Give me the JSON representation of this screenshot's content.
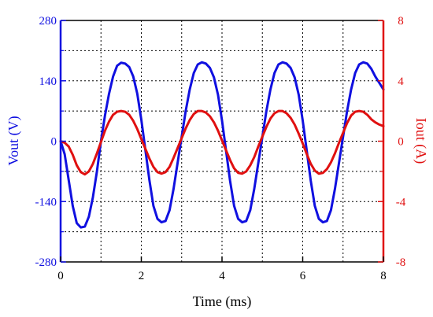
{
  "chart_data": {
    "type": "line",
    "title": "",
    "xlabel": "Time (ms)",
    "xlim": [
      0,
      8
    ],
    "xticks": [
      "0",
      "2",
      "4",
      "6",
      "8"
    ],
    "grid": true,
    "legend": "none",
    "left_axis": {
      "label": "Vout (V)",
      "color": "#1010e0",
      "ylim": [
        -280,
        280
      ],
      "ticks": [
        "280",
        "140",
        "0",
        "-140",
        "-280"
      ]
    },
    "right_axis": {
      "label": "Iout (A)",
      "color": "#e01010",
      "ylim": [
        -8,
        8
      ],
      "ticks": [
        "8",
        "4",
        "0",
        "-4",
        "-8"
      ]
    },
    "series": [
      {
        "axis": "left",
        "color": "#1010e0",
        "x": [
          0,
          0.1,
          0.2,
          0.3,
          0.4,
          0.5,
          0.6,
          0.7,
          0.8,
          0.9,
          1.0,
          1.1,
          1.2,
          1.3,
          1.4,
          1.5,
          1.6,
          1.7,
          1.8,
          1.9,
          2.0,
          2.1,
          2.2,
          2.3,
          2.4,
          2.5,
          2.6,
          2.7,
          2.8,
          2.9,
          3.0,
          3.1,
          3.2,
          3.3,
          3.4,
          3.5,
          3.6,
          3.7,
          3.8,
          3.9,
          4.0,
          4.1,
          4.2,
          4.3,
          4.4,
          4.5,
          4.6,
          4.7,
          4.8,
          4.9,
          5.0,
          5.1,
          5.2,
          5.3,
          5.4,
          5.5,
          5.6,
          5.7,
          5.8,
          5.9,
          6.0,
          6.1,
          6.2,
          6.3,
          6.4,
          6.5,
          6.6,
          6.7,
          6.8,
          6.9,
          7.0,
          7.1,
          7.2,
          7.3,
          7.4,
          7.5,
          7.6,
          7.7,
          7.8,
          7.9,
          8.0
        ],
        "y": [
          0,
          -30,
          -90,
          -150,
          -190,
          -200,
          -198,
          -175,
          -130,
          -70,
          0,
          60,
          110,
          150,
          175,
          182,
          180,
          172,
          150,
          110,
          50,
          -20,
          -90,
          -150,
          -180,
          -188,
          -185,
          -160,
          -110,
          -50,
          10,
          70,
          120,
          158,
          178,
          183,
          180,
          170,
          148,
          108,
          48,
          -22,
          -92,
          -150,
          -180,
          -188,
          -185,
          -160,
          -110,
          -50,
          10,
          70,
          120,
          158,
          178,
          183,
          180,
          170,
          148,
          108,
          48,
          -22,
          -92,
          -150,
          -180,
          -188,
          -185,
          -160,
          -110,
          -50,
          10,
          70,
          120,
          158,
          178,
          183,
          180,
          168,
          150,
          135,
          120
        ]
      },
      {
        "axis": "right",
        "color": "#e01010",
        "x": [
          0,
          0.1,
          0.2,
          0.3,
          0.4,
          0.5,
          0.6,
          0.7,
          0.8,
          0.9,
          1.0,
          1.1,
          1.2,
          1.3,
          1.4,
          1.5,
          1.6,
          1.7,
          1.8,
          1.9,
          2.0,
          2.1,
          2.2,
          2.3,
          2.4,
          2.5,
          2.6,
          2.7,
          2.8,
          2.9,
          3.0,
          3.1,
          3.2,
          3.3,
          3.4,
          3.5,
          3.6,
          3.7,
          3.8,
          3.9,
          4.0,
          4.1,
          4.2,
          4.3,
          4.4,
          4.5,
          4.6,
          4.7,
          4.8,
          4.9,
          5.0,
          5.1,
          5.2,
          5.3,
          5.4,
          5.5,
          5.6,
          5.7,
          5.8,
          5.9,
          6.0,
          6.1,
          6.2,
          6.3,
          6.4,
          6.5,
          6.6,
          6.7,
          6.8,
          6.9,
          7.0,
          7.1,
          7.2,
          7.3,
          7.4,
          7.5,
          7.6,
          7.7,
          7.8,
          7.9,
          8.0
        ],
        "y": [
          0,
          -0.1,
          -0.35,
          -0.9,
          -1.6,
          -2.05,
          -2.2,
          -2.0,
          -1.5,
          -0.8,
          -0.05,
          0.7,
          1.3,
          1.75,
          1.95,
          2.0,
          1.95,
          1.75,
          1.35,
          0.8,
          0.15,
          -0.5,
          -1.15,
          -1.7,
          -2.05,
          -2.15,
          -2.05,
          -1.7,
          -1.1,
          -0.45,
          0.2,
          0.85,
          1.4,
          1.8,
          2.0,
          2.0,
          1.9,
          1.65,
          1.25,
          0.7,
          0.05,
          -0.6,
          -1.25,
          -1.8,
          -2.1,
          -2.15,
          -2.0,
          -1.6,
          -1.05,
          -0.35,
          0.3,
          0.95,
          1.5,
          1.85,
          2.0,
          2.0,
          1.85,
          1.55,
          1.1,
          0.5,
          -0.15,
          -0.85,
          -1.5,
          -1.95,
          -2.15,
          -2.1,
          -1.85,
          -1.4,
          -0.8,
          -0.1,
          0.55,
          1.2,
          1.7,
          1.95,
          2.0,
          1.95,
          1.75,
          1.45,
          1.25,
          1.1,
          1.0
        ]
      }
    ]
  }
}
